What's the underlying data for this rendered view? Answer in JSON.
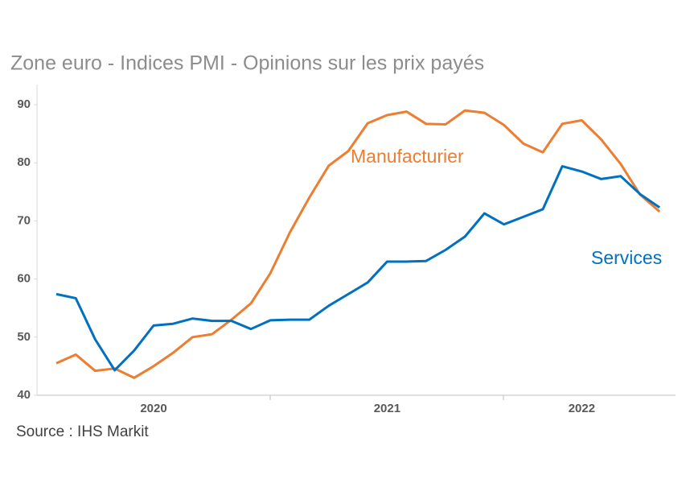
{
  "chart_data": {
    "type": "line",
    "title": "Zone euro - Indices PMI - Opinions sur les prix payés",
    "source": "Source :  IHS Markit",
    "categories": [
      null,
      null,
      null,
      null,
      null,
      "2020",
      null,
      null,
      null,
      null,
      null,
      null,
      null,
      null,
      null,
      null,
      null,
      "2021",
      null,
      null,
      null,
      null,
      null,
      null,
      null,
      null,
      null,
      "2022",
      null,
      null,
      null,
      null
    ],
    "series": [
      {
        "name": "Manufacturier",
        "color": "#ED7D31",
        "values": [
          45.5,
          47,
          44.2,
          44.6,
          43,
          45,
          47.3,
          50,
          50.5,
          53,
          55.8,
          61,
          68,
          74,
          79.5,
          82,
          86.8,
          88.2,
          88.8,
          86.7,
          86.6,
          89,
          88.6,
          86.5,
          83.3,
          81.8,
          86.7,
          87.3,
          84,
          79.8,
          74.5,
          71.6
        ]
      },
      {
        "name": "Services",
        "color": "#0070C0",
        "values": [
          57.4,
          56.7,
          49.6,
          44.3,
          47.7,
          52,
          52.3,
          53.2,
          52.8,
          52.8,
          51.4,
          52.9,
          53,
          53,
          55.4,
          57.4,
          59.4,
          63,
          63,
          63.1,
          65,
          67.3,
          71.3,
          69.4,
          70.7,
          72,
          79.4,
          78.5,
          77.2,
          77.7,
          74.6,
          72.3
        ]
      }
    ],
    "ylim": [
      40,
      90
    ],
    "yticks": [
      40,
      50,
      60,
      70,
      80,
      90
    ]
  }
}
